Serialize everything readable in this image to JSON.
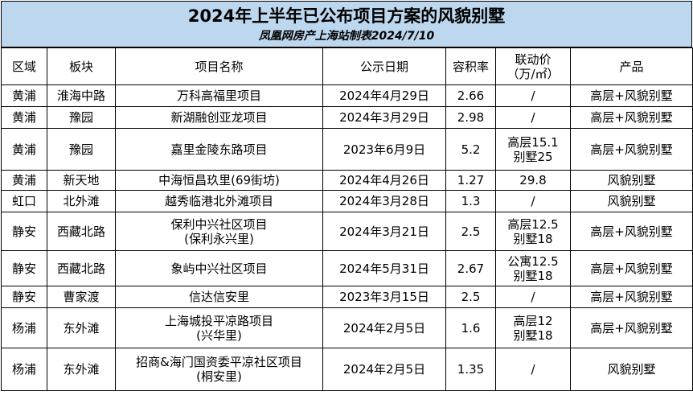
{
  "title": "2024年上半年已公布项目方案的风貌别墅",
  "subtitle": "凤凰网房产上海站制表2024/7/10",
  "columns": [
    "区域",
    "板块",
    "项目名称",
    "公示日期",
    "容积率",
    "联动价（万/㎡）",
    "产品"
  ],
  "columns_display": {
    "price_line1": "联动价",
    "price_line2": "（万/㎡）"
  },
  "rows": [
    {
      "district": "黄浦",
      "block": "淮海中路",
      "name": [
        "万科高福里项目"
      ],
      "date": "2024年4月29日",
      "far": "2.66",
      "price": [
        "/"
      ],
      "product": "高层+风貌别墅"
    },
    {
      "district": "黄浦",
      "block": "豫园",
      "name": [
        "新湖融创亚龙项目"
      ],
      "date": "2024年3月29日",
      "far": "2.98",
      "price": [
        "/"
      ],
      "product": "高层+风貌别墅"
    },
    {
      "district": "黄浦",
      "block": "豫园",
      "name": [
        "嘉里金陵东路项目"
      ],
      "date": "2023年6月9日",
      "far": "5.2",
      "price": [
        "高层15.1",
        "别墅25"
      ],
      "product": "高层+风貌别墅"
    },
    {
      "district": "黄浦",
      "block": "新天地",
      "name": [
        "中海恒昌玖里(69街坊)"
      ],
      "date": "2024年4月26日",
      "far": "1.27",
      "price": [
        "29.8"
      ],
      "product": "风貌别墅"
    },
    {
      "district": "虹口",
      "block": "北外滩",
      "name": [
        "越秀临港北外滩项目"
      ],
      "date": "2024年3月28日",
      "far": "1.3",
      "price": [
        "/"
      ],
      "product": "风貌别墅"
    },
    {
      "district": "静安",
      "block": "西藏北路",
      "name": [
        "保利中兴社区项目",
        "(保利永兴里)"
      ],
      "date": "2024年3月21日",
      "far": "2.5",
      "price": [
        "高层12.5",
        "别墅18"
      ],
      "product": "高层+风貌别墅"
    },
    {
      "district": "静安",
      "block": "西藏北路",
      "name": [
        "象屿中兴社区项目"
      ],
      "date": "2024年5月31日",
      "far": "2.67",
      "price": [
        "公寓12.5",
        "别墅18"
      ],
      "product": "高层+风貌别墅"
    },
    {
      "district": "静安",
      "block": "曹家渡",
      "name": [
        "信达信安里"
      ],
      "date": "2023年3月15日",
      "far": "2.5",
      "price": [
        "/"
      ],
      "product": "高层+风貌别墅"
    },
    {
      "district": "杨浦",
      "block": "东外滩",
      "name": [
        "上海城投平凉路项目",
        "(兴华里)"
      ],
      "date": "2024年2月5日",
      "far": "1.6",
      "price": [
        "高层12",
        "别墅18"
      ],
      "product": "高层+风貌别墅"
    },
    {
      "district": "杨浦",
      "block": "东外滩",
      "name": [
        "招商&海门国资委平凉社区项目",
        "(桐安里)"
      ],
      "date": "2024年2月5日",
      "far": "1.35",
      "price": [
        "/"
      ],
      "product": "风貌别墅"
    }
  ]
}
